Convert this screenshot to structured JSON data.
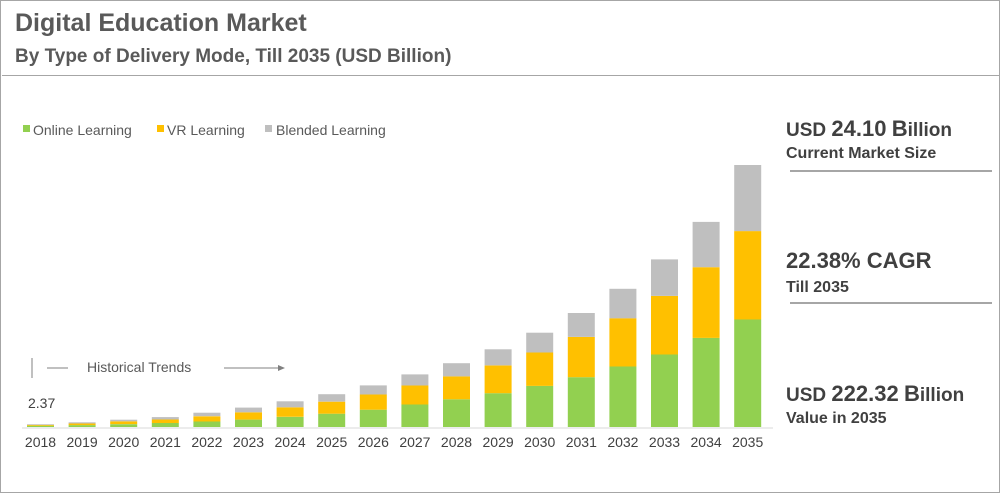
{
  "title": "Digital Education Market",
  "subtitle": "By Type of Delivery Mode, Till 2035 (USD Billion)",
  "colors": {
    "online": "#92d050",
    "vr": "#ffc000",
    "blended": "#bfbfbf"
  },
  "annotation": {
    "historical_trends": "Historical Trends",
    "first_value": "2.37"
  },
  "stats": [
    {
      "prefix": "USD ",
      "value": "24.10",
      "unit_initial": "B",
      "unit_rest": "illion",
      "label": "Current Market Size"
    },
    {
      "prefix": "",
      "value": "22.38% CAGR",
      "unit_initial": "",
      "unit_rest": "",
      "label": "Till 2035"
    },
    {
      "prefix": "USD ",
      "value": "222.32",
      "unit_initial": "B",
      "unit_rest": "illion",
      "label": "Value in 2035"
    }
  ],
  "chart_data": {
    "type": "bar",
    "stacked": true,
    "title": "Digital Education Market",
    "subtitle": "By Type of Delivery Mode, Till 2035 (USD Billion)",
    "xlabel": "",
    "ylabel": "",
    "legend_position": "top-left",
    "grid": false,
    "categories": [
      "2018",
      "2019",
      "2020",
      "2021",
      "2022",
      "2023",
      "2024",
      "2025",
      "2026",
      "2027",
      "2028",
      "2029",
      "2030",
      "2031",
      "2032",
      "2033",
      "2034",
      "2035"
    ],
    "series": [
      {
        "name": "Online Learning",
        "values": [
          1.1,
          1.6,
          2.4,
          3.4,
          4.7,
          6.3,
          8.6,
          11.3,
          14.7,
          19.1,
          23.5,
          28.7,
          34.9,
          42.3,
          51.3,
          61.6,
          75.6,
          91.2
        ]
      },
      {
        "name": "VR Learning",
        "values": [
          0.7,
          1.4,
          2.4,
          3.0,
          4.4,
          6.2,
          8.1,
          10.2,
          12.9,
          16.1,
          19.4,
          23.5,
          28.3,
          34.1,
          41.0,
          49.6,
          60.0,
          75.0
        ]
      },
      {
        "name": "Blended Learning",
        "values": [
          0.57,
          1.0,
          1.4,
          2.0,
          3.0,
          4.0,
          5.1,
          6.3,
          7.7,
          9.4,
          11.2,
          13.7,
          16.8,
          20.3,
          25.0,
          31.0,
          38.4,
          56.1
        ]
      }
    ],
    "totals": [
      2.37,
      4.0,
      6.2,
      8.4,
      12.1,
      16.5,
      21.8,
      27.8,
      35.3,
      44.6,
      54.1,
      65.9,
      80.0,
      96.7,
      117.3,
      142.2,
      174.0,
      222.32
    ],
    "ylim": [
      0,
      222.32
    ]
  }
}
